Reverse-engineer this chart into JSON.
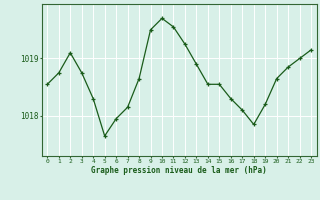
{
  "x": [
    0,
    1,
    2,
    3,
    4,
    5,
    6,
    7,
    8,
    9,
    10,
    11,
    12,
    13,
    14,
    15,
    16,
    17,
    18,
    19,
    20,
    21,
    22,
    23
  ],
  "y": [
    1018.55,
    1018.75,
    1019.1,
    1018.75,
    1018.3,
    1017.65,
    1017.95,
    1018.15,
    1018.65,
    1019.5,
    1019.7,
    1019.55,
    1019.25,
    1018.9,
    1018.55,
    1018.55,
    1018.3,
    1018.1,
    1017.85,
    1018.2,
    1018.65,
    1018.85,
    1019.0,
    1019.15
  ],
  "line_color": "#1a5c1a",
  "marker": "+",
  "marker_color": "#1a5c1a",
  "background_color": "#d8f0e8",
  "grid_color": "#ffffff",
  "axis_color": "#336633",
  "label_color": "#1a5c1a",
  "xlabel": "Graphe pression niveau de la mer (hPa)",
  "ylim_min": 1017.3,
  "ylim_max": 1019.95,
  "ytick_positions": [
    1018,
    1019
  ],
  "xtick_positions": [
    0,
    1,
    2,
    3,
    4,
    5,
    6,
    7,
    8,
    9,
    10,
    11,
    12,
    13,
    14,
    15,
    16,
    17,
    18,
    19,
    20,
    21,
    22,
    23
  ]
}
